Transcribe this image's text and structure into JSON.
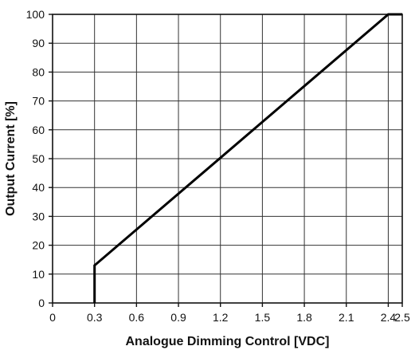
{
  "chart_data": {
    "type": "line",
    "title": "",
    "xlabel": "Analogue Dimming Control [VDC]",
    "ylabel": "Output Current [%]",
    "xlim": [
      0,
      2.5
    ],
    "ylim": [
      0,
      100
    ],
    "x_ticks": [
      {
        "value": 0,
        "label": "0"
      },
      {
        "value": 0.3,
        "label": "0.3"
      },
      {
        "value": 0.6,
        "label": "0.6"
      },
      {
        "value": 0.9,
        "label": "0.9"
      },
      {
        "value": 1.2,
        "label": "1.2"
      },
      {
        "value": 1.5,
        "label": "1.5"
      },
      {
        "value": 1.8,
        "label": "1.8"
      },
      {
        "value": 2.1,
        "label": "2.1"
      },
      {
        "value": 2.4,
        "label": "2.4"
      },
      {
        "value": 2.5,
        "label": "2.5"
      }
    ],
    "y_ticks": [
      {
        "value": 0,
        "label": "0"
      },
      {
        "value": 10,
        "label": "10"
      },
      {
        "value": 20,
        "label": "20"
      },
      {
        "value": 30,
        "label": "30"
      },
      {
        "value": 40,
        "label": "40"
      },
      {
        "value": 50,
        "label": "50"
      },
      {
        "value": 60,
        "label": "60"
      },
      {
        "value": 70,
        "label": "70"
      },
      {
        "value": 80,
        "label": "80"
      },
      {
        "value": 90,
        "label": "90"
      },
      {
        "value": 100,
        "label": "100"
      }
    ],
    "grid": true,
    "legend": "none",
    "series": [
      {
        "color": "#000000",
        "x": [
          0.3,
          0.3,
          2.4,
          2.5
        ],
        "y": [
          0,
          13,
          100,
          100
        ]
      }
    ]
  }
}
